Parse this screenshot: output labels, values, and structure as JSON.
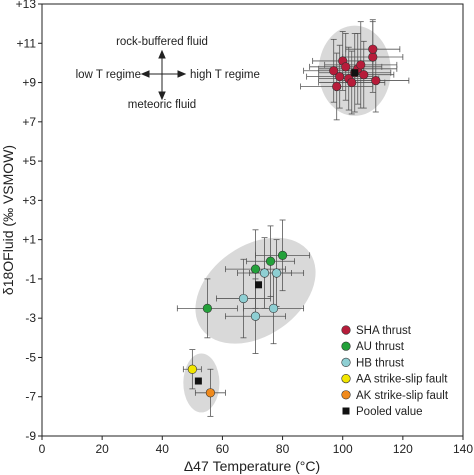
{
  "chart_data": {
    "type": "scatter",
    "xlabel": "Δ47 Temperature (°C)",
    "ylabel": "δ18OFluid (‰ VSMOW)",
    "xlim": [
      0,
      140
    ],
    "ylim": [
      -9,
      13
    ],
    "x_ticks": [
      0,
      20,
      40,
      60,
      80,
      100,
      120,
      140
    ],
    "y_ticks": [
      -9,
      -7,
      -5,
      -3,
      -1,
      1,
      3,
      5,
      7,
      9,
      11,
      13
    ],
    "x_tick_labels": [
      "0",
      "20",
      "40",
      "60",
      "80",
      "100",
      "120",
      "140"
    ],
    "y_tick_labels": [
      "-9",
      "-7",
      "-5",
      "-3",
      "-1",
      "+1",
      "+3",
      "+5",
      "+7",
      "+9",
      "+11",
      "+13"
    ],
    "annotations": {
      "up": "rock-buffered fluid",
      "down": "meteoric fluid",
      "left": "low T regime",
      "right": "high T regime"
    },
    "legend_position": "bottom-right",
    "series": [
      {
        "name": "SHA thrust",
        "color": "#b71c3a",
        "points": [
          {
            "x": 97,
            "y": 9.6,
            "xerr": 10,
            "yerr": 1.6
          },
          {
            "x": 98,
            "y": 8.8,
            "xerr": 12,
            "yerr": 1.7
          },
          {
            "x": 99,
            "y": 9.3,
            "xerr": 11,
            "yerr": 1.6
          },
          {
            "x": 100,
            "y": 10.1,
            "xerr": 10,
            "yerr": 1.5
          },
          {
            "x": 101,
            "y": 9.8,
            "xerr": 12,
            "yerr": 1.7
          },
          {
            "x": 102,
            "y": 9.2,
            "xerr": 10,
            "yerr": 1.6
          },
          {
            "x": 103,
            "y": 9.0,
            "xerr": 11,
            "yerr": 1.6
          },
          {
            "x": 104,
            "y": 9.5,
            "xerr": 12,
            "yerr": 2.0
          },
          {
            "x": 105,
            "y": 9.7,
            "xerr": 13,
            "yerr": 1.8
          },
          {
            "x": 106,
            "y": 9.9,
            "xerr": 12,
            "yerr": 2.2
          },
          {
            "x": 107,
            "y": 9.4,
            "xerr": 10,
            "yerr": 1.7
          },
          {
            "x": 110,
            "y": 10.3,
            "xerr": 10,
            "yerr": 1.8
          },
          {
            "x": 110,
            "y": 10.7,
            "xerr": 9,
            "yerr": 1.5
          },
          {
            "x": 111,
            "y": 9.1,
            "xerr": 11,
            "yerr": 1.6
          }
        ]
      },
      {
        "name": "AU thrust",
        "color": "#23a13a",
        "points": [
          {
            "x": 55,
            "y": -2.5,
            "xerr": 10,
            "yerr": 1.5
          },
          {
            "x": 71,
            "y": -0.5,
            "xerr": 10,
            "yerr": 2.0
          },
          {
            "x": 76,
            "y": -0.1,
            "xerr": 8,
            "yerr": 1.8
          },
          {
            "x": 80,
            "y": 0.2,
            "xerr": 9,
            "yerr": 1.8
          }
        ]
      },
      {
        "name": "HB thrust",
        "color": "#8ecfd3",
        "points": [
          {
            "x": 67,
            "y": -2.0,
            "xerr": 9,
            "yerr": 2.0
          },
          {
            "x": 71,
            "y": -2.9,
            "xerr": 10,
            "yerr": 1.9
          },
          {
            "x": 74,
            "y": -0.7,
            "xerr": 9,
            "yerr": 1.8
          },
          {
            "x": 78,
            "y": -0.7,
            "xerr": 9,
            "yerr": 1.7
          },
          {
            "x": 77,
            "y": -2.5,
            "xerr": 10,
            "yerr": 1.8
          }
        ]
      },
      {
        "name": "AA strike-slip fault",
        "color": "#f2e600",
        "points": [
          {
            "x": 50,
            "y": -5.6,
            "xerr": 3,
            "yerr": 1.0
          }
        ]
      },
      {
        "name": "AK strike-slip fault",
        "color": "#f08a1c",
        "points": [
          {
            "x": 56,
            "y": -6.8,
            "xerr": 5,
            "yerr": 1.2
          }
        ]
      },
      {
        "name": "Pooled value",
        "color": "#111111",
        "marker": "square",
        "points": [
          {
            "x": 104,
            "y": 9.5
          },
          {
            "x": 72,
            "y": -1.3
          },
          {
            "x": 52,
            "y": -6.2
          }
        ]
      }
    ],
    "ellipses": [
      {
        "cx": 104,
        "cy": 9.6,
        "rx": 12,
        "ry": 2.3,
        "rotate": 0
      },
      {
        "cx": 71,
        "cy": -1.6,
        "rx": 22,
        "ry": 2.3,
        "rotate": -35
      },
      {
        "cx": 53,
        "cy": -6.3,
        "rx": 6,
        "ry": 1.5,
        "rotate": 0
      }
    ],
    "ellipse_color": "#d9d9d9"
  }
}
